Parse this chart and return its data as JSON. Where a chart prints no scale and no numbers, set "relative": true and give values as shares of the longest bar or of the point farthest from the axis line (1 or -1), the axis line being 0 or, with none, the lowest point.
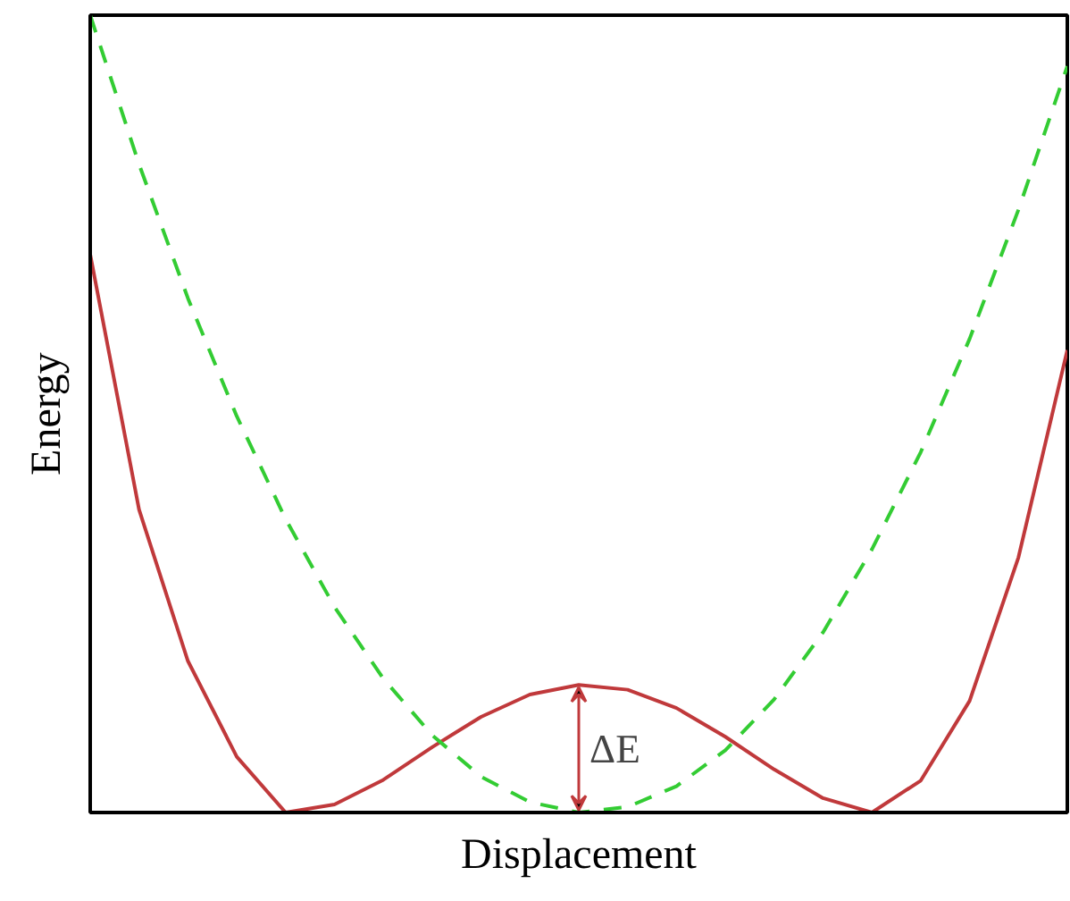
{
  "chart_data": {
    "type": "line",
    "relative": true,
    "xlabel": "Displacement",
    "ylabel": "Energy",
    "grid": false,
    "categories": [
      null,
      null,
      null,
      null,
      null,
      null,
      null,
      null,
      null,
      null,
      null,
      null,
      null,
      null,
      null,
      null,
      null,
      null,
      null,
      null,
      null
    ],
    "series": [
      {
        "color": "#c0393b",
        "line_style": "solid",
        "values": [
          0.7,
          0.38,
          0.19,
          0.07,
          0.0,
          0.01,
          0.041,
          0.082,
          0.12,
          0.148,
          0.16,
          0.154,
          0.131,
          0.095,
          0.054,
          0.018,
          0.0,
          0.04,
          0.14,
          0.32,
          0.58
        ]
      },
      {
        "color": "#33cc33",
        "line_style": "dashed",
        "values": [
          1.0,
          0.813,
          0.645,
          0.497,
          0.368,
          0.258,
          0.168,
          0.097,
          0.045,
          0.013,
          0.0,
          0.007,
          0.033,
          0.078,
          0.142,
          0.226,
          0.33,
          0.452,
          0.594,
          0.756,
          0.936
        ]
      }
    ],
    "annotations": [
      {
        "text": "ΔE",
        "y": 0.16
      }
    ]
  }
}
